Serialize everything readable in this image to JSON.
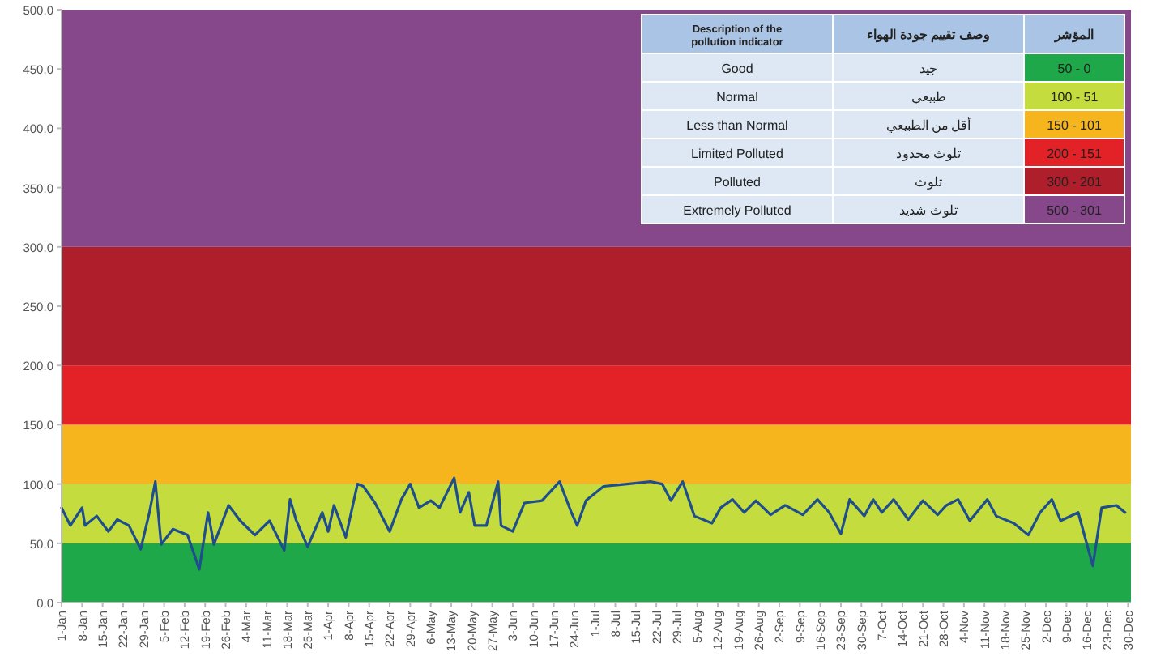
{
  "chart_data": {
    "type": "line",
    "x": [
      "--01-01",
      "--01-04",
      "--01-08",
      "--01-09",
      "--01-13",
      "--01-17",
      "--01-20",
      "--01-24",
      "--01-28",
      "--01-31",
      "--02-02",
      "--02-04",
      "--02-08",
      "--02-13",
      "--02-17",
      "--02-20",
      "--02-22",
      "--02-27",
      "--03-02",
      "--03-07",
      "--03-12",
      "--03-17",
      "--03-19",
      "--03-21",
      "--03-25",
      "--03-30",
      "--04-01",
      "--04-03",
      "--04-07",
      "--04-11",
      "--04-13",
      "--04-17",
      "--04-22",
      "--04-26",
      "--04-29",
      "--05-02",
      "--05-06",
      "--05-09",
      "--05-14",
      "--05-16",
      "--05-19",
      "--05-21",
      "--05-25",
      "--05-29",
      "--05-30",
      "--06-03",
      "--06-07",
      "--06-13",
      "--06-19",
      "--06-23",
      "--06-25",
      "--06-28",
      "--07-04",
      "--07-20",
      "--07-24",
      "--07-27",
      "--07-31",
      "--08-04",
      "--08-10",
      "--08-13",
      "--08-17",
      "--08-21",
      "--08-25",
      "--08-30",
      "--09-04",
      "--09-10",
      "--09-15",
      "--09-19",
      "--09-23",
      "--09-26",
      "--10-01",
      "--10-04",
      "--10-07",
      "--10-11",
      "--10-16",
      "--10-21",
      "--10-26",
      "--10-29",
      "--11-02",
      "--11-06",
      "--11-12",
      "--11-15",
      "--11-21",
      "--11-26",
      "--11-30",
      "--12-04",
      "--12-07",
      "--12-13",
      "--12-18",
      "--12-21",
      "--12-26",
      "--12-29"
    ],
    "series": [
      {
        "color": "#1f4e8c",
        "values": [
          80,
          65,
          80,
          65,
          73,
          60,
          70,
          65,
          45,
          76,
          102,
          49,
          62,
          57,
          28,
          76,
          49,
          82,
          69,
          57,
          69,
          44,
          87,
          70,
          47,
          76,
          60,
          82,
          55,
          100,
          98,
          84,
          60,
          87,
          100,
          80,
          86,
          80,
          105,
          76,
          93,
          65,
          65,
          102,
          65,
          60,
          84,
          86,
          102,
          76,
          65,
          86,
          98,
          102,
          100,
          86,
          102,
          73,
          67,
          80,
          87,
          76,
          86,
          74,
          82,
          74,
          87,
          76,
          58,
          87,
          73,
          87,
          76,
          87,
          70,
          86,
          74,
          82,
          87,
          69,
          87,
          73,
          67,
          57,
          76,
          87,
          69,
          76,
          31,
          80,
          82,
          76
        ]
      }
    ],
    "xlim": [
      "--01-01",
      "--12-31"
    ],
    "xticks": [
      {
        "value": "--01-01",
        "label": "1-Jan"
      },
      {
        "value": "--01-08",
        "label": "8-Jan"
      },
      {
        "value": "--01-15",
        "label": "15-Jan"
      },
      {
        "value": "--01-22",
        "label": "22-Jan"
      },
      {
        "value": "--01-29",
        "label": "29-Jan"
      },
      {
        "value": "--02-05",
        "label": "5-Feb"
      },
      {
        "value": "--02-12",
        "label": "12-Feb"
      },
      {
        "value": "--02-19",
        "label": "19-Feb"
      },
      {
        "value": "--02-26",
        "label": "26-Feb"
      },
      {
        "value": "--03-04",
        "label": "4-Mar"
      },
      {
        "value": "--03-11",
        "label": "11-Mar"
      },
      {
        "value": "--03-18",
        "label": "18-Mar"
      },
      {
        "value": "--03-25",
        "label": "25-Mar"
      },
      {
        "value": "--04-01",
        "label": "1-Apr"
      },
      {
        "value": "--04-08",
        "label": "8-Apr"
      },
      {
        "value": "--04-15",
        "label": "15-Apr"
      },
      {
        "value": "--04-22",
        "label": "22-Apr"
      },
      {
        "value": "--04-29",
        "label": "29-Apr"
      },
      {
        "value": "--05-06",
        "label": "6-May"
      },
      {
        "value": "--05-13",
        "label": "13-May"
      },
      {
        "value": "--05-20",
        "label": "20-May"
      },
      {
        "value": "--05-27",
        "label": "27-May"
      },
      {
        "value": "--06-03",
        "label": "3-Jun"
      },
      {
        "value": "--06-10",
        "label": "10-Jun"
      },
      {
        "value": "--06-17",
        "label": "17-Jun"
      },
      {
        "value": "--06-24",
        "label": "24-Jun"
      },
      {
        "value": "--07-01",
        "label": "1-Jul"
      },
      {
        "value": "--07-08",
        "label": "8-Jul"
      },
      {
        "value": "--07-15",
        "label": "15-Jul"
      },
      {
        "value": "--07-22",
        "label": "22-Jul"
      },
      {
        "value": "--07-29",
        "label": "29-Jul"
      },
      {
        "value": "--08-05",
        "label": "5-Aug"
      },
      {
        "value": "--08-12",
        "label": "12-Aug"
      },
      {
        "value": "--08-19",
        "label": "19-Aug"
      },
      {
        "value": "--08-26",
        "label": "26-Aug"
      },
      {
        "value": "--09-02",
        "label": "2-Sep"
      },
      {
        "value": "--09-09",
        "label": "9-Sep"
      },
      {
        "value": "--09-16",
        "label": "16-Sep"
      },
      {
        "value": "--09-23",
        "label": "23-Sep"
      },
      {
        "value": "--09-30",
        "label": "30-Sep"
      },
      {
        "value": "--10-07",
        "label": "7-Oct"
      },
      {
        "value": "--10-14",
        "label": "14-Oct"
      },
      {
        "value": "--10-21",
        "label": "21-Oct"
      },
      {
        "value": "--10-28",
        "label": "28-Oct"
      },
      {
        "value": "--11-04",
        "label": "4-Nov"
      },
      {
        "value": "--11-11",
        "label": "11-Nov"
      },
      {
        "value": "--11-18",
        "label": "18-Nov"
      },
      {
        "value": "--11-25",
        "label": "25-Nov"
      },
      {
        "value": "--12-02",
        "label": "2-Dec"
      },
      {
        "value": "--12-09",
        "label": "9-Dec"
      },
      {
        "value": "--12-16",
        "label": "16-Dec"
      },
      {
        "value": "--12-23",
        "label": "23-Dec"
      },
      {
        "value": "--12-30",
        "label": "30-Dec"
      }
    ],
    "ylim": [
      0,
      500
    ],
    "yticks": [
      {
        "value": 0,
        "label": "0.0"
      },
      {
        "value": 50,
        "label": "50.0"
      },
      {
        "value": 100,
        "label": "100.0"
      },
      {
        "value": 150,
        "label": "150.0"
      },
      {
        "value": 200,
        "label": "200.0"
      },
      {
        "value": 250,
        "label": "250.0"
      },
      {
        "value": 300,
        "label": "300.0"
      },
      {
        "value": 350,
        "label": "350.0"
      },
      {
        "value": 400,
        "label": "400.0"
      },
      {
        "value": 450,
        "label": "450.0"
      },
      {
        "value": 500,
        "label": "500.0"
      }
    ],
    "bands": [
      {
        "axis": "y",
        "from": 0,
        "to": 50,
        "color": "#1fa84a"
      },
      {
        "axis": "y",
        "from": 50,
        "to": 100,
        "color": "#c5dc3e"
      },
      {
        "axis": "y",
        "from": 100,
        "to": 150,
        "color": "#f6b51d"
      },
      {
        "axis": "y",
        "from": 150,
        "to": 200,
        "color": "#e32227"
      },
      {
        "axis": "y",
        "from": 200,
        "to": 300,
        "color": "#ae1f2b"
      },
      {
        "axis": "y",
        "from": 300,
        "to": 500,
        "color": "#86488a"
      }
    ],
    "annotations": [
      "Description of the pollution indicator",
      "وصف تقييم جودة الهواء",
      "المؤشر",
      "Good",
      "جيد",
      "50 - 0",
      "Normal",
      "طبيعي",
      "100 - 51",
      "Less than Normal",
      "أقل من الطبيعي",
      "150 - 101",
      "Limited Polluted",
      "تلوث محدود",
      "200 - 151",
      "Polluted",
      "تلوث",
      "300 - 201",
      "Extremely Polluted",
      "تلوث شديد",
      "500 - 301"
    ],
    "grid": false,
    "marker": "none",
    "line_style": "solid"
  }
}
